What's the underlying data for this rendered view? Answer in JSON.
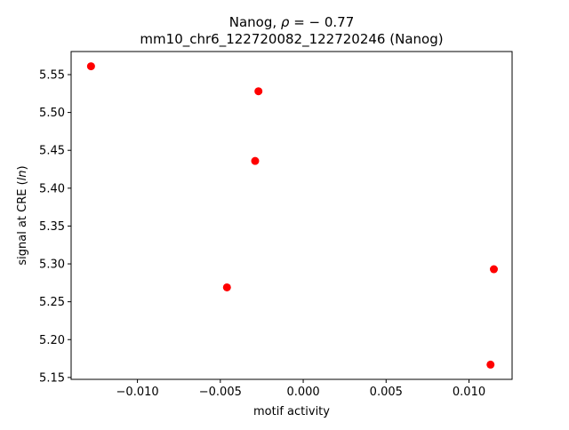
{
  "chart_data": {
    "type": "scatter",
    "title_line1_prefix": "Nanog, ",
    "title_line1_rho": "ρ",
    "title_line1_suffix": " = − 0.77",
    "title_line2": "mm10_chr6_122720082_122720246 (Nanog)",
    "xlabel": "motif activity",
    "ylabel_prefix": "signal at CRE (",
    "ylabel_italic": "ln",
    "ylabel_suffix": ")",
    "xlim": [
      -0.014,
      0.0126
    ],
    "ylim": [
      5.1475,
      5.5805
    ],
    "xticks": [
      {
        "value": -0.01,
        "label": "−0.010"
      },
      {
        "value": -0.005,
        "label": "−0.005"
      },
      {
        "value": 0.0,
        "label": "0.000"
      },
      {
        "value": 0.005,
        "label": "0.005"
      },
      {
        "value": 0.01,
        "label": "0.010"
      }
    ],
    "yticks": [
      {
        "value": 5.15,
        "label": "5.15"
      },
      {
        "value": 5.2,
        "label": "5.20"
      },
      {
        "value": 5.25,
        "label": "5.25"
      },
      {
        "value": 5.3,
        "label": "5.30"
      },
      {
        "value": 5.35,
        "label": "5.35"
      },
      {
        "value": 5.4,
        "label": "5.40"
      },
      {
        "value": 5.45,
        "label": "5.45"
      },
      {
        "value": 5.5,
        "label": "5.50"
      },
      {
        "value": 5.55,
        "label": "5.55"
      }
    ],
    "series": [
      {
        "color": "#ff0000",
        "points": [
          {
            "x": -0.0128,
            "y": 5.561
          },
          {
            "x": -0.0027,
            "y": 5.528
          },
          {
            "x": -0.0029,
            "y": 5.436
          },
          {
            "x": -0.0046,
            "y": 5.269
          },
          {
            "x": 0.0115,
            "y": 5.293
          },
          {
            "x": 0.0113,
            "y": 5.167
          }
        ]
      }
    ],
    "grid": false,
    "legend": "none"
  }
}
